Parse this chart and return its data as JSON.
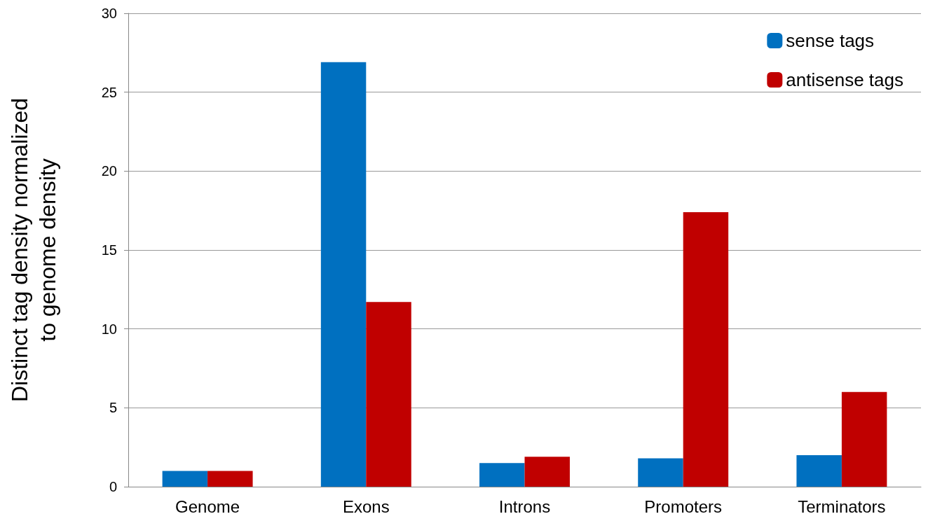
{
  "chart_data": {
    "type": "bar",
    "ylabel": "Distinct tag density normalized\nto genome density",
    "categories": [
      "Genome",
      "Exons",
      "Introns",
      "Promoters",
      "Terminators"
    ],
    "series": [
      {
        "name": "sense tags",
        "color": "#0070c0",
        "values": [
          1.0,
          26.9,
          1.5,
          1.8,
          2.0
        ]
      },
      {
        "name": "antisense tags",
        "color": "#c00000",
        "values": [
          1.0,
          11.7,
          1.9,
          17.4,
          6.0
        ]
      }
    ],
    "ylim": [
      0,
      30
    ],
    "yticks": [
      0,
      5,
      10,
      15,
      20,
      25,
      30
    ],
    "grid": "y",
    "legend": "top right"
  }
}
